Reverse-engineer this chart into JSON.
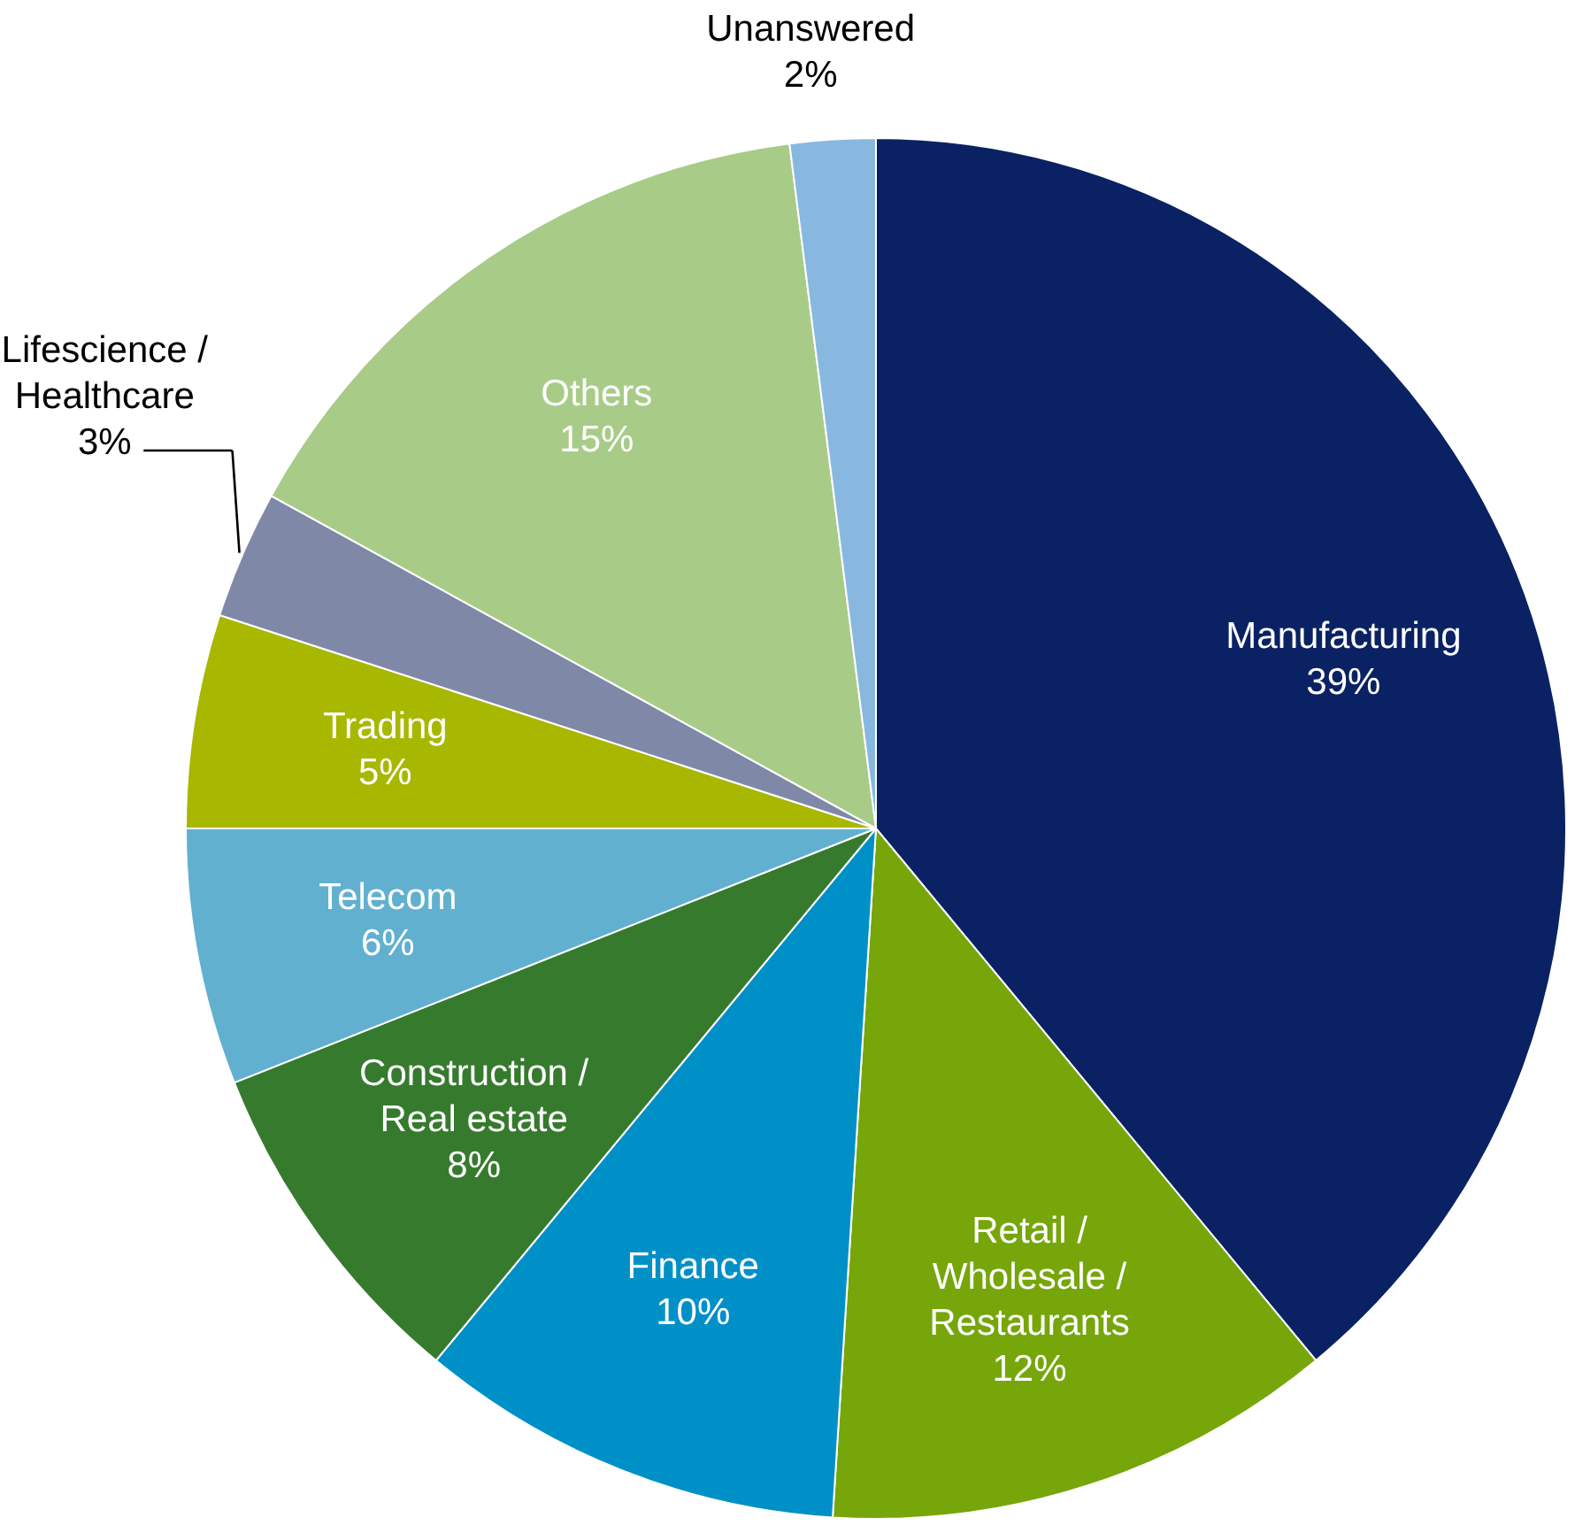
{
  "chart_data": {
    "type": "pie",
    "categories": [
      "Manufacturing",
      "Retail / Wholesale / Restaurants",
      "Finance",
      "Construction / Real estate",
      "Telecom",
      "Trading",
      "Lifescience / Healthcare",
      "Others",
      "Unanswered"
    ],
    "values": [
      39,
      12,
      10,
      8,
      6,
      5,
      3,
      15,
      2
    ],
    "value_labels": [
      "39%",
      "12%",
      "10%",
      "8%",
      "6%",
      "5%",
      "3%",
      "15%",
      "2%"
    ],
    "colors": [
      "#0a2263",
      "#76a60a",
      "#0090c8",
      "#367a2e",
      "#62b0d0",
      "#a8b800",
      "#8088a8",
      "#a8cc88",
      "#88b8e0"
    ]
  }
}
